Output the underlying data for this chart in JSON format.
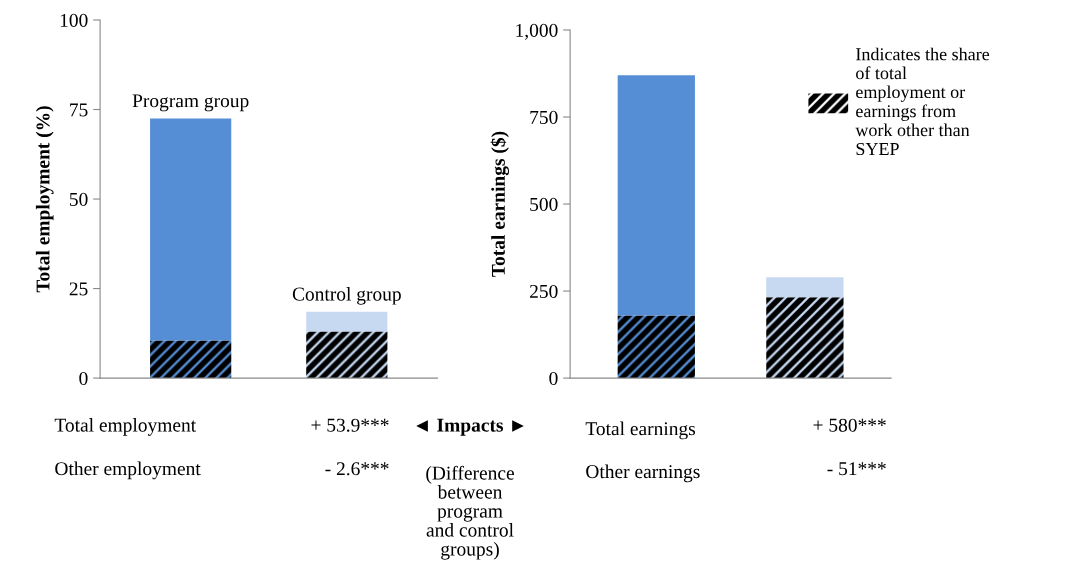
{
  "chart_data": [
    {
      "type": "bar",
      "stacked": true,
      "ylabel": "Total employment (%)",
      "categories": [
        "Program group",
        "Control group"
      ],
      "ylim": [
        0,
        100
      ],
      "yticks": [
        0,
        25,
        50,
        75,
        100
      ],
      "series": [
        {
          "colors": [
            "#558ed5",
            "#c6d9f1"
          ],
          "values": [
            10.5,
            13
          ]
        },
        {
          "colors": [
            "#558ed5",
            "#c6d9f1"
          ],
          "values": [
            62,
            5.5
          ]
        }
      ],
      "annotations": [
        "Total employment",
        "+ 53.9***",
        "Other employment",
        "- 2.6***",
        "◄ Impacts ►",
        "(Difference\nbetween\nprogram\nand control\ngroups)"
      ]
    },
    {
      "type": "bar",
      "stacked": true,
      "ylabel": "Total earnings ($)",
      "categories": [
        null,
        null
      ],
      "ylim": [
        0,
        1000
      ],
      "yticks": [
        0,
        250,
        500,
        750,
        {
          "value": 1000,
          "label": "1,000"
        }
      ],
      "legend": "right",
      "series": [
        {
          "name": "Indicates the share\nof total\nemployment or\nearnings from\nwork other than\nSYEP",
          "colors": [
            "#558ed5",
            "#c6d9f1"
          ],
          "values": [
            180,
            232
          ]
        },
        {
          "colors": [
            "#558ed5",
            "#c6d9f1"
          ],
          "values": [
            690,
            58
          ]
        }
      ],
      "annotations": [
        "Total earnings",
        "+ 580***",
        "Other earnings",
        "- 51***"
      ]
    }
  ]
}
